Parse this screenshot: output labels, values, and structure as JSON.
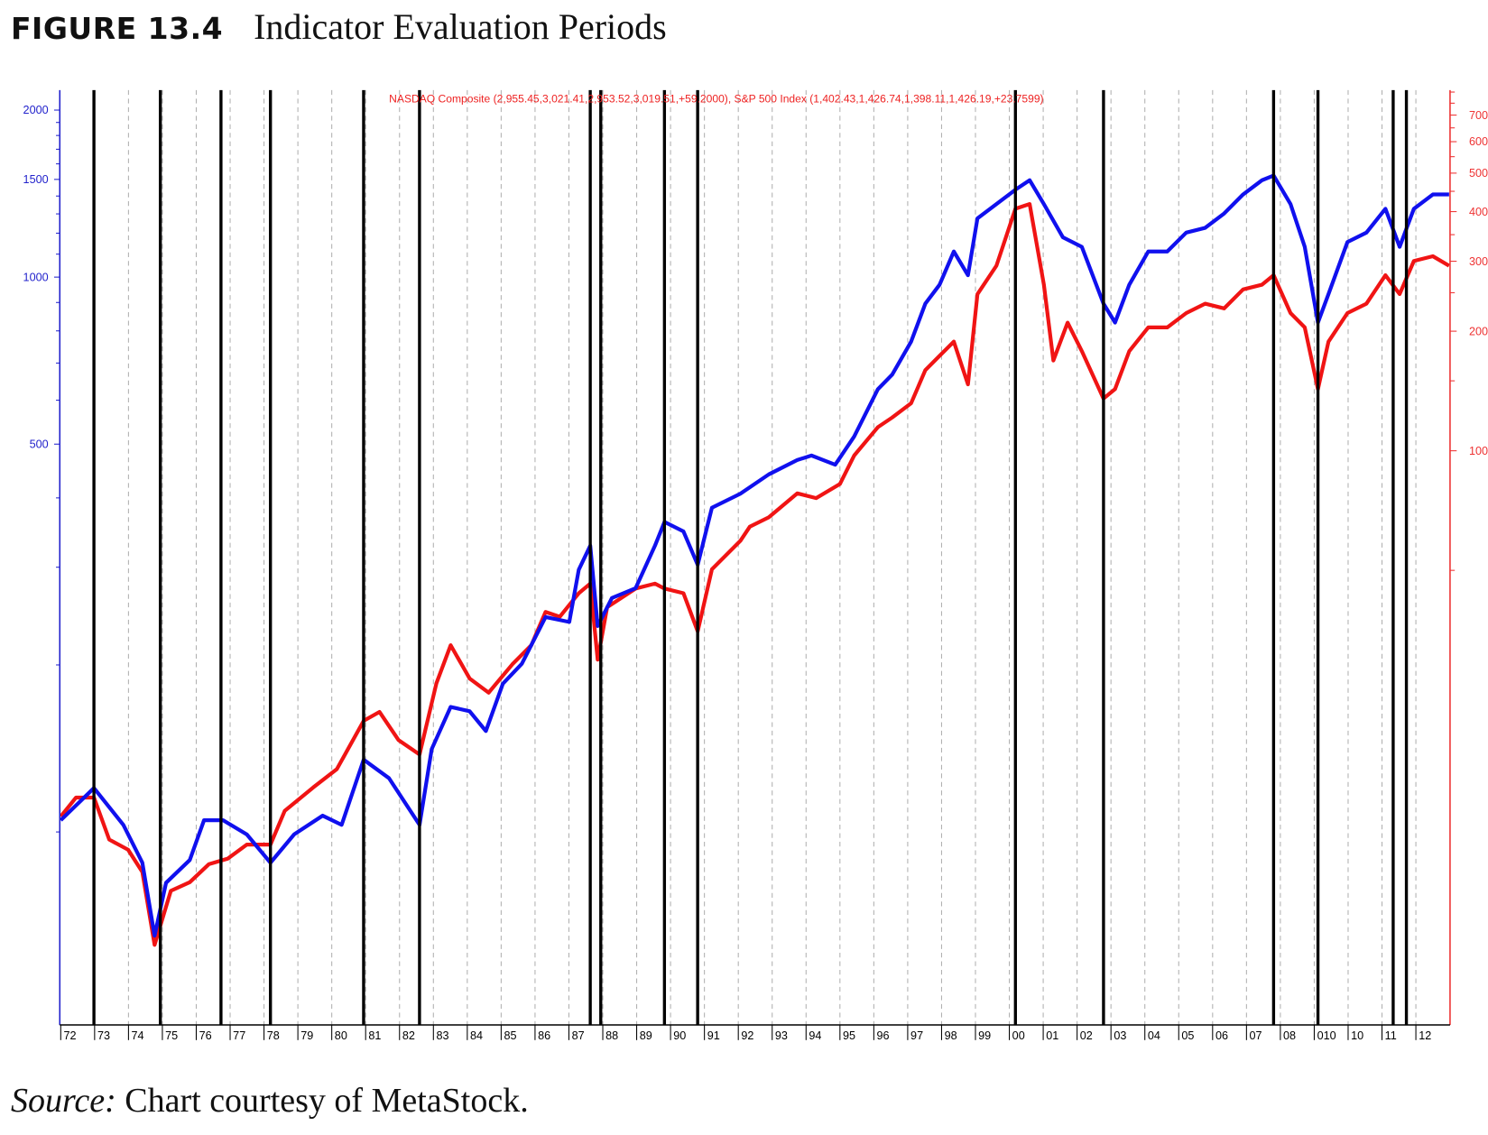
{
  "figure": {
    "number": "FIGURE 13.4",
    "title": "Indicator Evaluation Periods",
    "source_label": "Source:",
    "source_text": " Chart courtesy of MetaStock."
  },
  "colors": {
    "nasdaq": "#1010ee",
    "sp500": "#f01414",
    "left_axis": "#2222cc",
    "right_axis": "#ee3333",
    "period_line": "#000000",
    "grid": "#b0b0b0"
  },
  "chart_data": {
    "type": "line",
    "title": "Indicator Evaluation Periods",
    "legend_text": "NASDAQ Composite (2,955.45,3,021.41,2,953.52,3,019.51,+59.2000), S&P 500 Index (1,402.43,1,426.74,1,398.11,1,426.19,+23.7599)",
    "legend_placement": "top-center",
    "x_ticks": [
      {
        "year": 1972,
        "label": "72"
      },
      {
        "year": 1973,
        "label": "73"
      },
      {
        "year": 1974,
        "label": "74"
      },
      {
        "year": 1975,
        "label": "75"
      },
      {
        "year": 1976,
        "label": "76"
      },
      {
        "year": 1977,
        "label": "77"
      },
      {
        "year": 1978,
        "label": "78"
      },
      {
        "year": 1979,
        "label": "79"
      },
      {
        "year": 1980,
        "label": "80"
      },
      {
        "year": 1981,
        "label": "81"
      },
      {
        "year": 1982,
        "label": "82"
      },
      {
        "year": 1983,
        "label": "83"
      },
      {
        "year": 1984,
        "label": "84"
      },
      {
        "year": 1985,
        "label": "85"
      },
      {
        "year": 1986,
        "label": "86"
      },
      {
        "year": 1987,
        "label": "87"
      },
      {
        "year": 1988,
        "label": "88"
      },
      {
        "year": 1989,
        "label": "89"
      },
      {
        "year": 1990,
        "label": "90"
      },
      {
        "year": 1991,
        "label": "91"
      },
      {
        "year": 1992,
        "label": "92"
      },
      {
        "year": 1993,
        "label": "93"
      },
      {
        "year": 1994,
        "label": "94"
      },
      {
        "year": 1995,
        "label": "95"
      },
      {
        "year": 1996,
        "label": "96"
      },
      {
        "year": 1997,
        "label": "97"
      },
      {
        "year": 1998,
        "label": "98"
      },
      {
        "year": 1999,
        "label": "99"
      },
      {
        "year": 2000,
        "label": "00"
      },
      {
        "year": 2001,
        "label": "01"
      },
      {
        "year": 2002,
        "label": "02"
      },
      {
        "year": 2003,
        "label": "03"
      },
      {
        "year": 2004,
        "label": "04"
      },
      {
        "year": 2005,
        "label": "05"
      },
      {
        "year": 2006,
        "label": "06"
      },
      {
        "year": 2007,
        "label": "07"
      },
      {
        "year": 2008,
        "label": "08"
      },
      {
        "year": 2009,
        "label": "010"
      },
      {
        "year": 2010,
        "label": "10"
      },
      {
        "year": 2011,
        "label": "11"
      },
      {
        "year": 2012,
        "label": "12"
      }
    ],
    "xlim": [
      1972,
      2013.1
    ],
    "left_axis": {
      "scale": "log",
      "labels": [
        2000,
        1500,
        1000,
        500
      ],
      "minor": [
        1900,
        1800,
        1700,
        1600,
        1400,
        1300,
        1200,
        1100,
        900,
        800,
        700,
        600,
        400,
        300,
        200,
        100
      ]
    },
    "right_axis": {
      "scale": "log",
      "labels": [
        700,
        600,
        500,
        400,
        300,
        200,
        100
      ],
      "minor": [
        800,
        750,
        650,
        550,
        450,
        350,
        250,
        150,
        50
      ]
    },
    "evaluation_periods": [
      1972.98,
      1974.94,
      1976.73,
      1978.19,
      1980.94,
      1982.59,
      1987.63,
      1987.94,
      1989.82,
      1990.8,
      2000.18,
      2002.78,
      2007.8,
      2009.11,
      2011.33,
      2011.72
    ],
    "series": [
      {
        "name": "NASDAQ Composite",
        "axis": "left",
        "x": [
          1972.0,
          1972.98,
          1973.85,
          1974.41,
          1974.77,
          1975.11,
          1975.81,
          1976.23,
          1976.79,
          1977.49,
          1978.19,
          1978.89,
          1979.73,
          1980.29,
          1980.94,
          1981.69,
          1982.59,
          1982.95,
          1983.51,
          1984.07,
          1984.55,
          1985.05,
          1985.61,
          1986.31,
          1987.01,
          1987.29,
          1987.63,
          1987.85,
          1988.27,
          1988.97,
          1989.54,
          1989.82,
          1990.38,
          1990.8,
          1991.22,
          1992.06,
          1992.9,
          1993.74,
          1994.16,
          1994.86,
          1995.42,
          1996.12,
          1996.54,
          1997.1,
          1997.52,
          1997.94,
          1998.36,
          1998.78,
          1999.06,
          1999.62,
          2000.18,
          2000.6,
          2001.02,
          2001.58,
          2002.14,
          2002.78,
          2003.12,
          2003.54,
          2004.1,
          2004.66,
          2005.22,
          2005.78,
          2006.34,
          2006.9,
          2007.46,
          2007.8,
          2008.3,
          2008.72,
          2009.11,
          2009.42,
          2009.98,
          2010.54,
          2011.1,
          2011.52,
          2011.94,
          2012.5,
          2012.98
        ],
        "y": [
          105,
          120,
          103,
          88,
          65,
          81,
          89,
          105,
          105,
          99,
          88,
          99,
          107,
          103,
          135,
          125,
          103,
          141,
          168,
          165,
          152,
          185,
          201,
          244,
          239,
          297,
          328,
          235,
          264,
          275,
          328,
          362,
          348,
          303,
          384,
          407,
          441,
          468,
          477,
          459,
          516,
          628,
          667,
          765,
          896,
          969,
          1112,
          1008,
          1276,
          1354,
          1437,
          1495,
          1354,
          1180,
          1134,
          896,
          828,
          969,
          1112,
          1112,
          1203,
          1227,
          1302,
          1409,
          1495,
          1524,
          1354,
          1134,
          828,
          932,
          1157,
          1203,
          1328,
          1134,
          1328,
          1409,
          1409
        ]
      },
      {
        "name": "S&P 500 Index",
        "axis": "right",
        "x": [
          1972.0,
          1972.45,
          1972.98,
          1973.43,
          1973.99,
          1974.41,
          1974.77,
          1975.25,
          1975.81,
          1976.37,
          1976.93,
          1977.49,
          1978.19,
          1978.61,
          1979.45,
          1980.15,
          1980.94,
          1981.41,
          1981.97,
          1982.59,
          1983.09,
          1983.51,
          1984.07,
          1984.63,
          1985.33,
          1985.89,
          1986.31,
          1986.73,
          1987.29,
          1987.63,
          1987.85,
          1988.13,
          1988.97,
          1989.54,
          1989.82,
          1990.38,
          1990.8,
          1991.22,
          1992.06,
          1992.34,
          1992.9,
          1993.74,
          1994.3,
          1995.0,
          1995.42,
          1996.12,
          1996.54,
          1997.1,
          1997.52,
          1997.94,
          1998.36,
          1998.78,
          1999.06,
          1999.62,
          2000.18,
          2000.6,
          2001.02,
          2001.3,
          2001.72,
          2002.14,
          2002.78,
          2003.12,
          2003.54,
          2004.1,
          2004.66,
          2005.22,
          2005.78,
          2006.34,
          2006.9,
          2007.46,
          2007.8,
          2008.3,
          2008.72,
          2009.11,
          2009.42,
          2009.98,
          2010.54,
          2011.1,
          2011.52,
          2011.94,
          2012.5,
          2012.98
        ],
        "y": [
          12.0,
          13.4,
          13.4,
          10.5,
          9.9,
          8.7,
          5.7,
          7.8,
          8.2,
          9.1,
          9.4,
          10.2,
          10.2,
          12.4,
          14.2,
          15.8,
          20.9,
          22.0,
          18.7,
          17.2,
          26.0,
          32.4,
          26.7,
          24.6,
          29.0,
          32.4,
          39.3,
          38.2,
          43.8,
          46.3,
          29.8,
          40.4,
          45.0,
          46.3,
          45.0,
          43.8,
          35.1,
          50.3,
          59.3,
          64.4,
          68.0,
          78.1,
          76.0,
          82.5,
          97.3,
          114.7,
          121.2,
          131.7,
          159.6,
          173.4,
          188.3,
          147.0,
          247.9,
          292.4,
          406.6,
          417.9,
          261.9,
          168.7,
          210.1,
          178.2,
          135.3,
          143.0,
          178.2,
          204.5,
          204.5,
          222.1,
          234.6,
          228.2,
          254.8,
          261.9,
          276.7,
          222.1,
          204.5,
          143.0,
          188.3,
          222.1,
          234.6,
          276.7,
          248.0,
          300.5,
          308.9,
          292.4
        ]
      }
    ]
  }
}
